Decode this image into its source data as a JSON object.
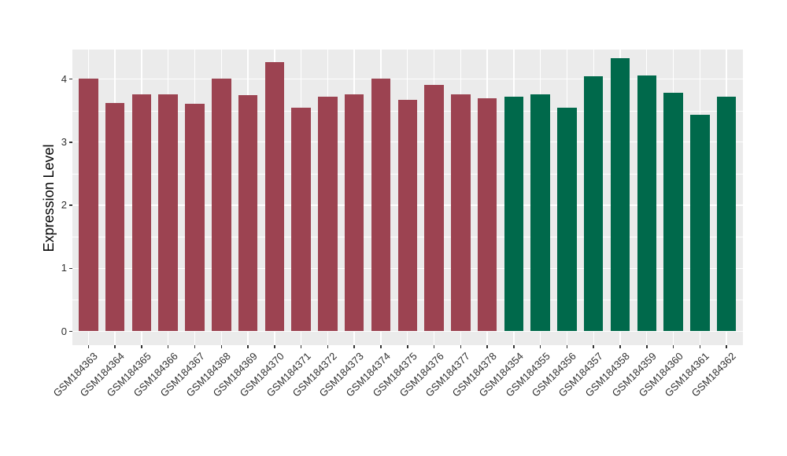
{
  "chart_data": {
    "type": "bar",
    "title": "",
    "xlabel": "",
    "ylabel": "Expression Level",
    "yticks": [
      0,
      1,
      2,
      3,
      4
    ],
    "ylim": [
      -0.23,
      4.49
    ],
    "grid": {
      "major_color": "#FFFFFF",
      "minor_color": "#FFFFFF",
      "panel_bg": "#EBEBEB"
    },
    "legend": "none",
    "group_colors": {
      "groupA": "#9C4351",
      "groupB": "#00694B"
    },
    "bars": [
      {
        "label": "GSM184363",
        "value": 4.01,
        "group": "groupA"
      },
      {
        "label": "GSM184364",
        "value": 3.62,
        "group": "groupA"
      },
      {
        "label": "GSM184365",
        "value": 3.76,
        "group": "groupA"
      },
      {
        "label": "GSM184366",
        "value": 3.76,
        "group": "groupA"
      },
      {
        "label": "GSM184367",
        "value": 3.61,
        "group": "groupA"
      },
      {
        "label": "GSM184368",
        "value": 4.01,
        "group": "groupA"
      },
      {
        "label": "GSM184369",
        "value": 3.74,
        "group": "groupA"
      },
      {
        "label": "GSM184370",
        "value": 4.27,
        "group": "groupA"
      },
      {
        "label": "GSM184371",
        "value": 3.54,
        "group": "groupA"
      },
      {
        "label": "GSM184372",
        "value": 3.72,
        "group": "groupA"
      },
      {
        "label": "GSM184373",
        "value": 3.76,
        "group": "groupA"
      },
      {
        "label": "GSM184374",
        "value": 4.01,
        "group": "groupA"
      },
      {
        "label": "GSM184375",
        "value": 3.67,
        "group": "groupA"
      },
      {
        "label": "GSM184376",
        "value": 3.91,
        "group": "groupA"
      },
      {
        "label": "GSM184377",
        "value": 3.76,
        "group": "groupA"
      },
      {
        "label": "GSM184378",
        "value": 3.69,
        "group": "groupA"
      },
      {
        "label": "GSM184354",
        "value": 3.72,
        "group": "groupB"
      },
      {
        "label": "GSM184355",
        "value": 3.76,
        "group": "groupB"
      },
      {
        "label": "GSM184356",
        "value": 3.54,
        "group": "groupB"
      },
      {
        "label": "GSM184357",
        "value": 4.04,
        "group": "groupB"
      },
      {
        "label": "GSM184358",
        "value": 4.33,
        "group": "groupB"
      },
      {
        "label": "GSM184359",
        "value": 4.05,
        "group": "groupB"
      },
      {
        "label": "GSM184360",
        "value": 3.78,
        "group": "groupB"
      },
      {
        "label": "GSM184361",
        "value": 3.43,
        "group": "groupB"
      },
      {
        "label": "GSM184362",
        "value": 3.72,
        "group": "groupB"
      }
    ]
  }
}
